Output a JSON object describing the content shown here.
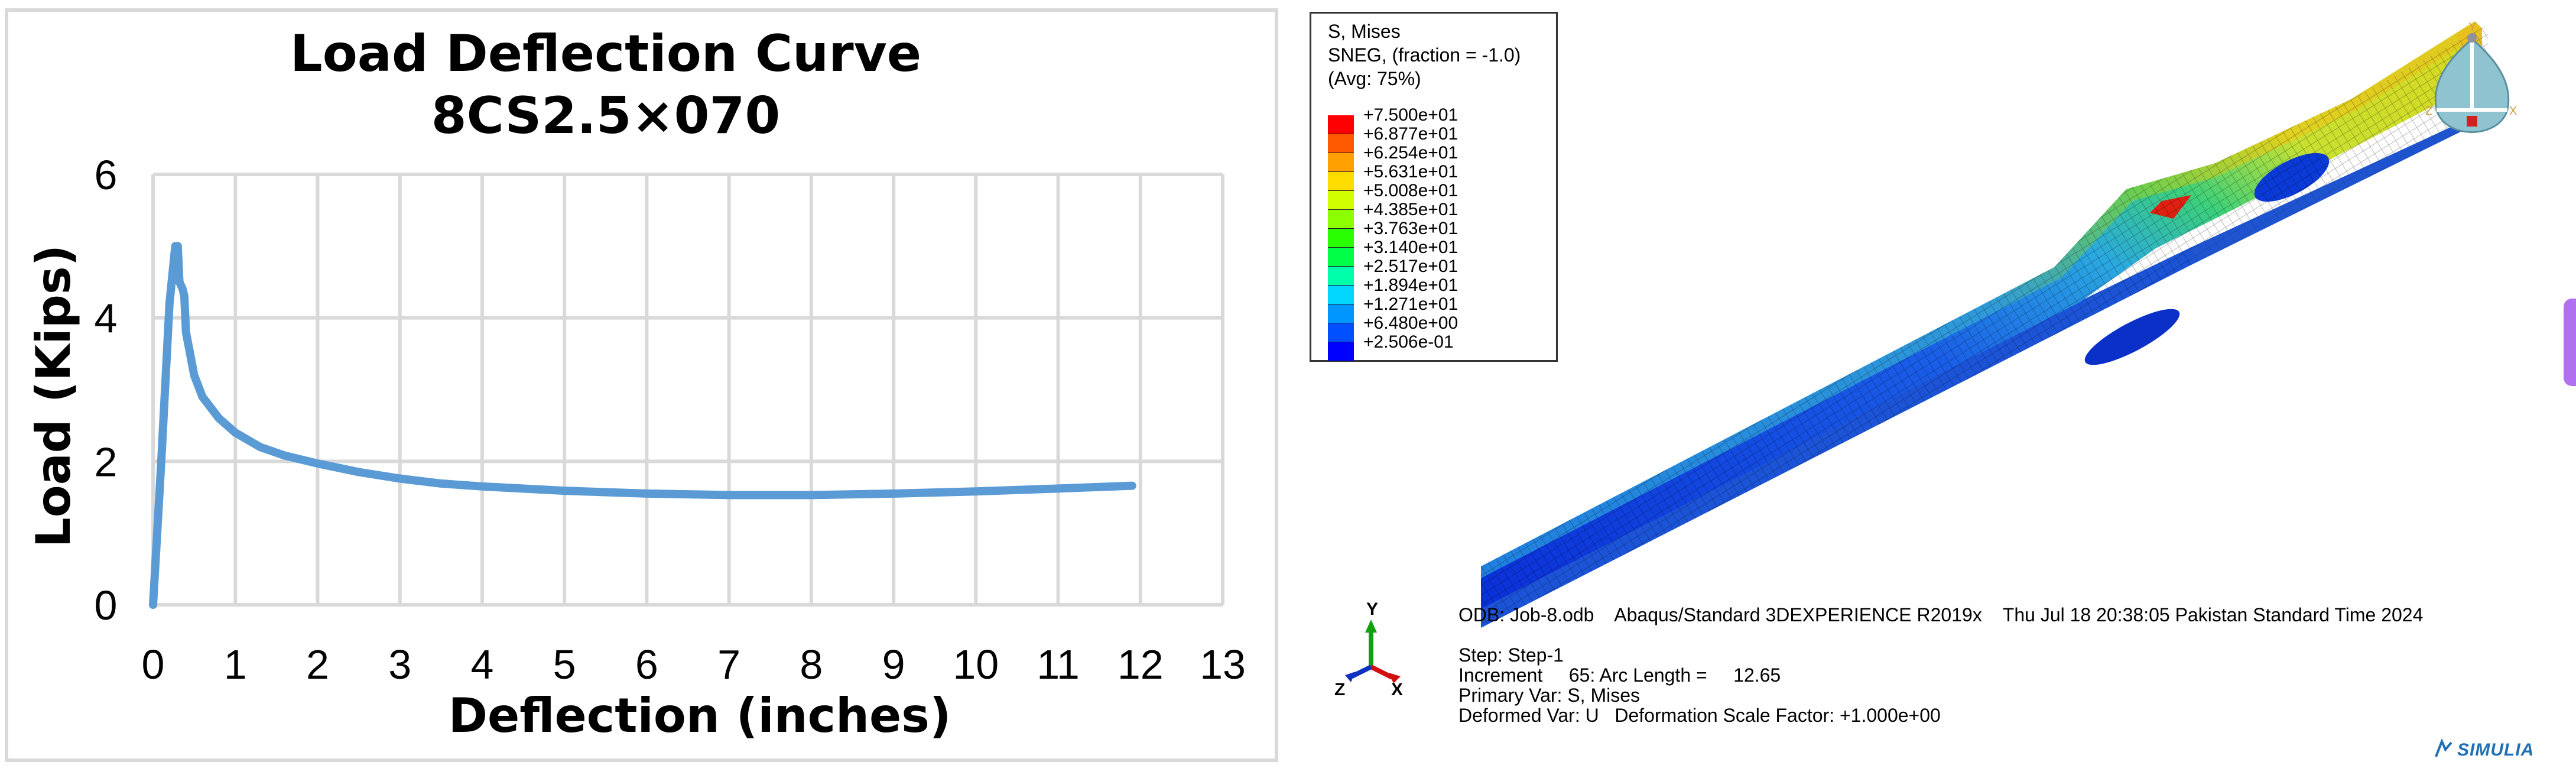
{
  "chart": {
    "title_line1": "Load Deflection Curve",
    "title_line2": "8CS2.5×070",
    "xlabel": "Deflection (inches)",
    "ylabel": "Load (Kips)"
  },
  "chart_data": {
    "type": "line",
    "title": "Load Deflection Curve 8CS2.5×070",
    "xlabel": "Deflection (inches)",
    "ylabel": "Load (Kips)",
    "xlim": [
      0,
      13
    ],
    "ylim": [
      0,
      6
    ],
    "xticks": [
      "0",
      "1",
      "2",
      "3",
      "4",
      "5",
      "6",
      "7",
      "8",
      "9",
      "10",
      "11",
      "12",
      "13"
    ],
    "yticks": [
      "0",
      "2",
      "4",
      "6"
    ],
    "grid": true,
    "legend": "none",
    "series": [
      {
        "color": "#5b9bd5",
        "x": [
          0,
          0.1,
          0.2,
          0.27,
          0.3,
          0.32,
          0.36,
          0.38,
          0.4,
          0.5,
          0.6,
          0.8,
          1.0,
          1.3,
          1.6,
          2.0,
          2.5,
          3.0,
          3.5,
          4.0,
          5.0,
          6.0,
          7.0,
          8.0,
          9.0,
          10.0,
          11.0,
          11.9
        ],
        "y": [
          0,
          2.0,
          4.2,
          5.0,
          5.0,
          4.5,
          4.4,
          4.3,
          3.8,
          3.2,
          2.9,
          2.6,
          2.4,
          2.2,
          2.08,
          1.97,
          1.85,
          1.76,
          1.69,
          1.65,
          1.59,
          1.55,
          1.53,
          1.53,
          1.55,
          1.58,
          1.62,
          1.66
        ]
      }
    ]
  },
  "viewport": {
    "legend": {
      "title1": "S, Mises",
      "title2": "SNEG, (fraction = -1.0)",
      "title3": "(Avg: 75%)",
      "values": [
        "+7.500e+01",
        "+6.877e+01",
        "+6.254e+01",
        "+5.631e+01",
        "+5.008e+01",
        "+4.385e+01",
        "+3.763e+01",
        "+3.140e+01",
        "+2.517e+01",
        "+1.894e+01",
        "+1.271e+01",
        "+6.480e+00",
        "+2.506e-01"
      ],
      "colors": [
        "#ff0000",
        "#ff5a00",
        "#ffa000",
        "#ffdc00",
        "#d2ff00",
        "#8cff00",
        "#2aff00",
        "#00ff46",
        "#00ffaa",
        "#00d6ff",
        "#0096ff",
        "#0050ff",
        "#0000ff"
      ]
    },
    "info": {
      "line1": "ODB: Job-8.odb    Abaqus/Standard 3DEXPERIENCE R2019x    Thu Jul 18 20:38:05 Pakistan Standard Time 2024",
      "line2": "Step: Step-1",
      "line3": "Increment     65: Arc Length =     12.65",
      "line4": "Primary Var: S, Mises",
      "line5": "Deformed Var: U   Deformation Scale Factor: +1.000e+00"
    },
    "triad": {
      "x": "X",
      "y": "Y",
      "z": "Z"
    },
    "view_cube": {
      "x": "X",
      "y": "Y",
      "z": "Z"
    },
    "brand": "SIMULIA"
  }
}
